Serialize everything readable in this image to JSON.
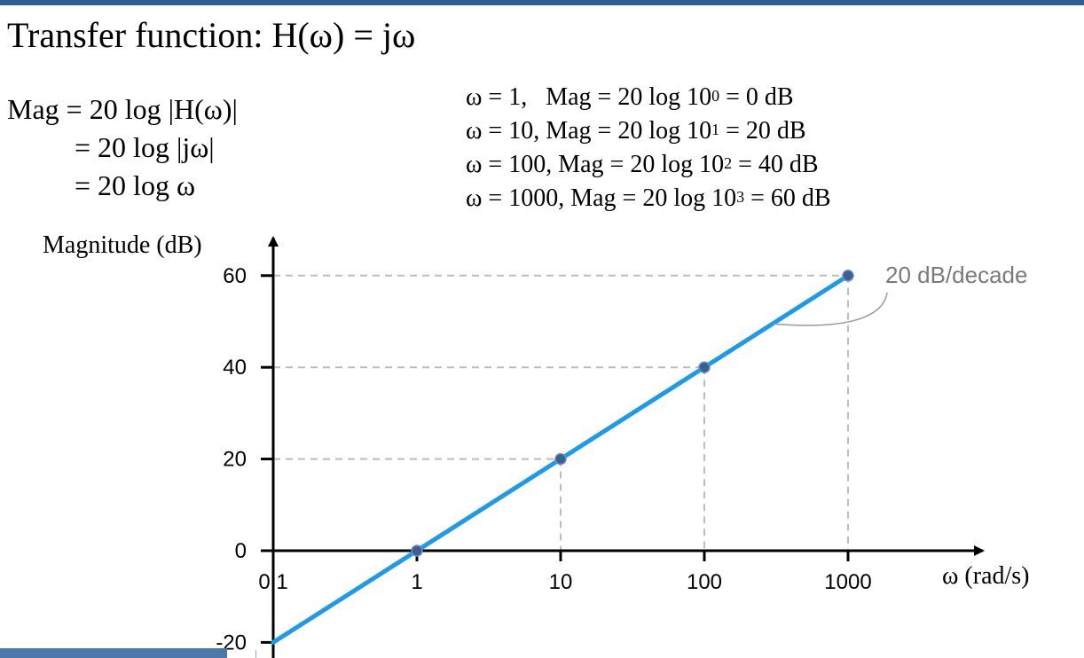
{
  "title": "Transfer function: H(ω) = jω",
  "derivation": [
    "Mag = 20 log |H(ω)|",
    "= 20 log |jω|",
    "= 20 log ω"
  ],
  "examples": [
    {
      "omega_text": "ω = 1,",
      "mag_text": "Mag = 20 log 10",
      "exp": "0",
      "result": " = 0 dB"
    },
    {
      "omega_text": "ω = 10,",
      "mag_text": "Mag = 20 log 10",
      "exp": "1",
      "result": " = 20 dB"
    },
    {
      "omega_text": "ω = 100,",
      "mag_text": "Mag = 20 log 10",
      "exp": "2",
      "result": " = 40 dB"
    },
    {
      "omega_text": "ω = 1000,",
      "mag_text": "Mag = 20 log 10",
      "exp": "3",
      "result": " = 60 dB"
    }
  ],
  "chart_data": {
    "type": "line",
    "title": "",
    "xlabel": "ω (rad/s)",
    "ylabel": "Magnitude (dB)",
    "x_scale": "log",
    "x_ticks": [
      0.1,
      1,
      10,
      100,
      1000
    ],
    "x_tick_labels": [
      "0.1",
      "1",
      "10",
      "100",
      "1000"
    ],
    "y_ticks": [
      -20,
      0,
      20,
      40,
      60
    ],
    "y_tick_labels": [
      "-20",
      "0",
      "20",
      "40",
      "60"
    ],
    "xlim": [
      0.1,
      10000
    ],
    "ylim": [
      -20,
      70
    ],
    "series": [
      {
        "x": [
          0.1,
          1000
        ],
        "y": [
          -20,
          60
        ],
        "color": "#1e9be8"
      }
    ],
    "points": [
      {
        "x": 1,
        "y": 0
      },
      {
        "x": 10,
        "y": 20
      },
      {
        "x": 100,
        "y": 40
      },
      {
        "x": 1000,
        "y": 60
      }
    ],
    "gridlines": "dashed guides to marked points",
    "annotation": "20 dB/decade",
    "point_color": "#3a5f93",
    "guide_color": "#bdbdbd"
  }
}
